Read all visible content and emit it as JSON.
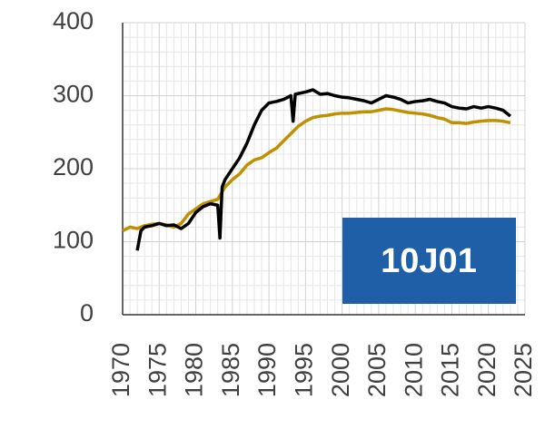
{
  "chart_data": {
    "type": "line",
    "annotation": "10J01",
    "xlim": [
      1970,
      2025
    ],
    "xticks": [
      1970,
      1975,
      1980,
      1985,
      1990,
      1995,
      2000,
      2005,
      2010,
      2015,
      2020,
      2025
    ],
    "ylim": [
      0,
      400
    ],
    "yticks": [
      0,
      100,
      200,
      300,
      400
    ],
    "grid": true,
    "minor_grid": true,
    "series": [
      {
        "color": "#000000",
        "x": [
          1972,
          1972.5,
          1973,
          1974,
          1975,
          1976,
          1977,
          1978,
          1979,
          1980,
          1981,
          1982,
          1983,
          1983.3,
          1983.6,
          1984,
          1985,
          1986,
          1987,
          1988,
          1989,
          1990,
          1991,
          1992,
          1993,
          1993.3,
          1993.6,
          1995,
          1996,
          1997,
          1998,
          1999,
          2000,
          2001,
          2002,
          2003,
          2004,
          2005,
          2006,
          2007,
          2008,
          2009,
          2010,
          2011,
          2012,
          2013,
          2014,
          2015,
          2016,
          2017,
          2018,
          2019,
          2020,
          2021,
          2022,
          2023
        ],
        "values": [
          88,
          115,
          120,
          122,
          125,
          122,
          123,
          118,
          125,
          140,
          148,
          152,
          150,
          105,
          175,
          185,
          200,
          215,
          235,
          260,
          280,
          290,
          292,
          295,
          300,
          265,
          302,
          305,
          308,
          302,
          303,
          300,
          298,
          297,
          295,
          293,
          290,
          295,
          300,
          298,
          295,
          290,
          292,
          293,
          295,
          292,
          290,
          285,
          283,
          282,
          285,
          283,
          285,
          283,
          280,
          272
        ]
      },
      {
        "color": "#bf9000",
        "x": [
          1970,
          1971,
          1972,
          1973,
          1974,
          1975,
          1976,
          1977,
          1978,
          1979,
          1980,
          1981,
          1982,
          1983,
          1984,
          1985,
          1986,
          1987,
          1988,
          1989,
          1990,
          1991,
          1992,
          1993,
          1994,
          1995,
          1996,
          1997,
          1998,
          1999,
          2000,
          2001,
          2002,
          2003,
          2004,
          2005,
          2006,
          2007,
          2008,
          2009,
          2010,
          2011,
          2012,
          2013,
          2014,
          2015,
          2016,
          2017,
          2018,
          2019,
          2020,
          2021,
          2022,
          2023
        ],
        "values": [
          115,
          120,
          118,
          122,
          124,
          125,
          123,
          120,
          125,
          138,
          145,
          152,
          155,
          158,
          175,
          185,
          193,
          205,
          212,
          215,
          222,
          228,
          238,
          248,
          258,
          265,
          270,
          272,
          273,
          275,
          276,
          276,
          277,
          278,
          278,
          280,
          282,
          281,
          279,
          277,
          276,
          275,
          273,
          270,
          268,
          263,
          263,
          262,
          264,
          265,
          266,
          266,
          265,
          263
        ]
      }
    ]
  }
}
